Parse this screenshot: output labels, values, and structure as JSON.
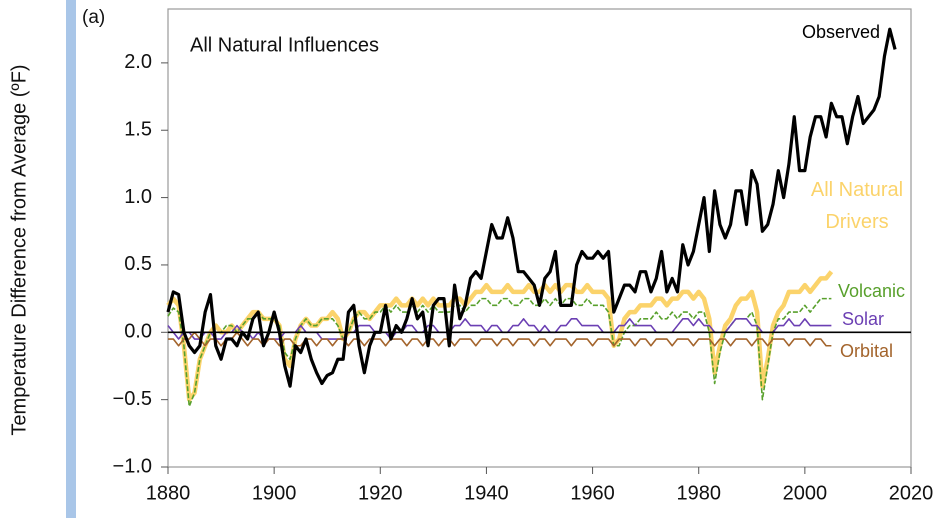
{
  "chart_data": {
    "type": "line",
    "panel_label": "(a)",
    "title": "All Natural Influences",
    "y_label": "Temperature Difference from Average (ºF)",
    "xlim": [
      1880,
      2020
    ],
    "xticks": [
      1880,
      1900,
      1920,
      1940,
      1960,
      1980,
      2000,
      2020
    ],
    "ylim": [
      -1.0,
      2.4
    ],
    "yticks": [
      {
        "value": -1.0,
        "label": "−1.0"
      },
      {
        "value": -0.5,
        "label": "−0.5"
      },
      {
        "value": 0,
        "label": "0.0"
      },
      0.5,
      {
        "value": 1.0,
        "label": "1.0"
      },
      1.5,
      {
        "value": 2.0,
        "label": "2.0"
      }
    ],
    "x": [
      1880,
      1881,
      1882,
      1883,
      1884,
      1885,
      1886,
      1887,
      1888,
      1889,
      1890,
      1891,
      1892,
      1893,
      1894,
      1895,
      1896,
      1897,
      1898,
      1899,
      1900,
      1901,
      1902,
      1903,
      1904,
      1905,
      1906,
      1907,
      1908,
      1909,
      1910,
      1911,
      1912,
      1913,
      1914,
      1915,
      1916,
      1917,
      1918,
      1919,
      1920,
      1921,
      1922,
      1923,
      1924,
      1925,
      1926,
      1927,
      1928,
      1929,
      1930,
      1931,
      1932,
      1933,
      1934,
      1935,
      1936,
      1937,
      1938,
      1939,
      1940,
      1941,
      1942,
      1943,
      1944,
      1945,
      1946,
      1947,
      1948,
      1949,
      1950,
      1951,
      1952,
      1953,
      1954,
      1955,
      1956,
      1957,
      1958,
      1959,
      1960,
      1961,
      1962,
      1963,
      1964,
      1965,
      1966,
      1967,
      1968,
      1969,
      1970,
      1971,
      1972,
      1973,
      1974,
      1975,
      1976,
      1977,
      1978,
      1979,
      1980,
      1981,
      1982,
      1983,
      1984,
      1985,
      1986,
      1987,
      1988,
      1989,
      1990,
      1991,
      1992,
      1993,
      1994,
      1995,
      1996,
      1997,
      1998,
      1999,
      2000,
      2001,
      2002,
      2003,
      2004,
      2005,
      2006,
      2007,
      2008,
      2009,
      2010,
      2011,
      2012,
      2013,
      2014,
      2015,
      2016,
      2017
    ],
    "series": [
      {
        "name": "All Natural Drivers",
        "color": "#fbd36b",
        "line_style": "solid",
        "values": [
          0.2,
          0.25,
          0.2,
          -0.1,
          -0.5,
          -0.45,
          -0.2,
          -0.1,
          0.0,
          0.05,
          0.0,
          0.0,
          0.05,
          0.0,
          0.05,
          0.1,
          0.15,
          0.15,
          0.1,
          0.1,
          0.1,
          0.05,
          -0.2,
          -0.25,
          -0.05,
          0.05,
          0.1,
          0.05,
          0.05,
          0.1,
          0.1,
          0.15,
          0.1,
          -0.05,
          0.0,
          0.1,
          0.15,
          0.15,
          0.1,
          0.15,
          0.2,
          0.2,
          0.2,
          0.25,
          0.2,
          0.2,
          0.25,
          0.2,
          0.25,
          0.2,
          0.25,
          0.2,
          0.2,
          0.2,
          0.25,
          0.25,
          0.2,
          0.25,
          0.3,
          0.3,
          0.35,
          0.3,
          0.3,
          0.3,
          0.35,
          0.3,
          0.3,
          0.3,
          0.35,
          0.3,
          0.3,
          0.35,
          0.3,
          0.35,
          0.3,
          0.35,
          0.35,
          0.3,
          0.3,
          0.35,
          0.3,
          0.3,
          0.3,
          0.25,
          -0.1,
          -0.05,
          0.1,
          0.15,
          0.15,
          0.2,
          0.2,
          0.2,
          0.25,
          0.25,
          0.2,
          0.25,
          0.25,
          0.3,
          0.3,
          0.25,
          0.3,
          0.25,
          0.1,
          -0.3,
          -0.1,
          0.05,
          0.1,
          0.2,
          0.25,
          0.25,
          0.3,
          0.15,
          -0.4,
          -0.2,
          0.05,
          0.15,
          0.2,
          0.3,
          0.3,
          0.3,
          0.35,
          0.3,
          0.35,
          0.4,
          0.4,
          0.45,
          null,
          null,
          null,
          null,
          null,
          null,
          null,
          null,
          null,
          null,
          null,
          null
        ]
      },
      {
        "name": "Volcanic",
        "color": "#58a02c",
        "line_style": "dashed",
        "values": [
          0.12,
          0.18,
          0.15,
          -0.1,
          -0.55,
          -0.45,
          -0.2,
          -0.1,
          0.0,
          0.0,
          0.0,
          0.05,
          0.05,
          0.0,
          0.05,
          0.1,
          0.1,
          0.15,
          0.1,
          0.1,
          0.1,
          0.05,
          -0.15,
          -0.2,
          -0.05,
          0.05,
          0.1,
          0.05,
          0.05,
          0.1,
          0.1,
          0.1,
          0.05,
          -0.05,
          0.0,
          0.1,
          0.15,
          0.1,
          0.1,
          0.15,
          0.15,
          0.2,
          0.15,
          0.2,
          0.15,
          0.15,
          0.2,
          0.15,
          0.2,
          0.15,
          0.2,
          0.15,
          0.15,
          0.15,
          0.2,
          0.2,
          0.15,
          0.2,
          0.2,
          0.25,
          0.25,
          0.2,
          0.2,
          0.25,
          0.25,
          0.2,
          0.2,
          0.25,
          0.25,
          0.2,
          0.2,
          0.25,
          0.2,
          0.25,
          0.2,
          0.25,
          0.25,
          0.2,
          0.2,
          0.25,
          0.2,
          0.2,
          0.2,
          0.15,
          -0.1,
          -0.1,
          0.0,
          0.05,
          0.05,
          0.1,
          0.1,
          0.1,
          0.15,
          0.1,
          0.1,
          0.15,
          0.1,
          0.15,
          0.15,
          0.1,
          0.15,
          0.15,
          0.0,
          -0.38,
          -0.15,
          0.0,
          0.05,
          0.1,
          0.1,
          0.1,
          0.15,
          0.05,
          -0.5,
          -0.25,
          0.0,
          0.1,
          0.1,
          0.15,
          0.15,
          0.15,
          0.2,
          0.15,
          0.2,
          0.25,
          0.25,
          0.25,
          null,
          null,
          null,
          null,
          null,
          null,
          null,
          null,
          null,
          null,
          null,
          null
        ]
      },
      {
        "name": "Solar",
        "color": "#6b3fb3",
        "line_style": "solid",
        "values": [
          0.05,
          0.0,
          -0.05,
          0.0,
          0.0,
          -0.05,
          -0.05,
          0.0,
          0.0,
          -0.05,
          -0.05,
          0.0,
          0.0,
          0.05,
          0.0,
          0.0,
          -0.05,
          0.0,
          -0.05,
          -0.05,
          -0.05,
          -0.05,
          0.0,
          0.0,
          0.0,
          0.05,
          0.0,
          0.0,
          0.0,
          -0.05,
          -0.05,
          -0.05,
          -0.05,
          -0.05,
          0.0,
          0.0,
          0.05,
          0.05,
          0.05,
          0.0,
          0.0,
          0.0,
          -0.05,
          0.0,
          0.0,
          0.05,
          0.05,
          0.0,
          0.0,
          0.05,
          0.05,
          0.0,
          0.0,
          0.0,
          0.05,
          0.05,
          0.1,
          0.05,
          0.05,
          0.05,
          0.0,
          0.05,
          0.05,
          0.0,
          0.0,
          0.05,
          0.05,
          0.1,
          0.05,
          0.05,
          0.0,
          0.05,
          0.0,
          0.0,
          0.05,
          0.05,
          0.1,
          0.1,
          0.05,
          0.05,
          0.05,
          0.05,
          0.0,
          0.0,
          0.0,
          0.05,
          0.05,
          0.1,
          0.05,
          0.05,
          0.05,
          0.05,
          0.0,
          0.0,
          0.0,
          0.0,
          0.05,
          0.1,
          0.1,
          0.05,
          0.1,
          0.05,
          0.05,
          0.0,
          0.0,
          0.0,
          0.05,
          0.1,
          0.1,
          0.1,
          0.05,
          0.05,
          0.0,
          0.0,
          0.0,
          0.05,
          0.05,
          0.1,
          0.05,
          0.05,
          0.1,
          0.05,
          0.05,
          0.05,
          0.05,
          0.05,
          null,
          null,
          null,
          null,
          null,
          null,
          null,
          null,
          null,
          null,
          null,
          null
        ]
      },
      {
        "name": "Orbital",
        "color": "#a3642c",
        "line_style": "solid",
        "values": [
          -0.05,
          -0.05,
          -0.1,
          -0.05,
          -0.05,
          0.0,
          -0.05,
          -0.1,
          -0.05,
          -0.05,
          -0.1,
          -0.05,
          -0.05,
          0.0,
          -0.05,
          -0.1,
          -0.05,
          -0.05,
          -0.1,
          -0.05,
          -0.05,
          -0.1,
          -0.05,
          -0.05,
          -0.1,
          -0.1,
          -0.05,
          -0.05,
          -0.1,
          -0.05,
          -0.05,
          -0.1,
          -0.05,
          -0.05,
          -0.1,
          -0.05,
          -0.05,
          -0.1,
          -0.05,
          -0.05,
          -0.05,
          -0.1,
          -0.05,
          -0.05,
          -0.05,
          -0.1,
          -0.05,
          -0.05,
          -0.1,
          -0.05,
          -0.05,
          -0.1,
          -0.05,
          -0.05,
          -0.1,
          -0.05,
          -0.05,
          -0.05,
          -0.1,
          -0.05,
          -0.05,
          -0.05,
          -0.1,
          -0.05,
          -0.05,
          -0.1,
          -0.05,
          -0.05,
          -0.05,
          -0.1,
          -0.05,
          -0.05,
          -0.1,
          -0.05,
          -0.05,
          -0.05,
          -0.1,
          -0.05,
          -0.05,
          -0.05,
          -0.1,
          -0.05,
          -0.05,
          -0.05,
          -0.1,
          -0.05,
          -0.05,
          -0.05,
          -0.1,
          -0.05,
          -0.05,
          -0.1,
          -0.05,
          -0.05,
          -0.05,
          -0.1,
          -0.05,
          -0.05,
          -0.05,
          -0.1,
          -0.05,
          -0.05,
          -0.05,
          -0.1,
          -0.05,
          -0.05,
          -0.1,
          -0.05,
          -0.05,
          -0.05,
          -0.1,
          -0.05,
          -0.05,
          -0.1,
          -0.05,
          -0.05,
          -0.05,
          -0.1,
          -0.05,
          -0.05,
          -0.05,
          -0.1,
          -0.05,
          -0.05,
          -0.1,
          -0.1,
          null,
          null,
          null,
          null,
          null,
          null,
          null,
          null,
          null,
          null,
          null,
          null
        ]
      },
      {
        "name": "Observed",
        "color": "#000000",
        "line_style": "solid",
        "values": [
          0.15,
          0.3,
          0.28,
          0.0,
          -0.1,
          -0.15,
          -0.1,
          0.15,
          0.28,
          -0.1,
          -0.2,
          -0.05,
          -0.05,
          -0.1,
          0.0,
          -0.05,
          0.1,
          0.15,
          -0.1,
          0.0,
          0.15,
          0.0,
          -0.25,
          -0.4,
          -0.1,
          -0.15,
          -0.05,
          -0.2,
          -0.3,
          -0.38,
          -0.32,
          -0.3,
          -0.2,
          -0.2,
          0.15,
          0.2,
          -0.1,
          -0.3,
          -0.1,
          0.0,
          0.0,
          0.2,
          -0.05,
          0.05,
          0.0,
          0.1,
          0.25,
          0.1,
          0.15,
          -0.1,
          0.2,
          0.25,
          0.25,
          -0.1,
          0.35,
          0.1,
          0.2,
          0.4,
          0.45,
          0.4,
          0.6,
          0.8,
          0.7,
          0.7,
          0.85,
          0.7,
          0.45,
          0.45,
          0.4,
          0.35,
          0.2,
          0.4,
          0.45,
          0.6,
          0.2,
          0.2,
          0.2,
          0.5,
          0.6,
          0.55,
          0.55,
          0.6,
          0.55,
          0.6,
          0.15,
          0.25,
          0.35,
          0.35,
          0.3,
          0.45,
          0.45,
          0.3,
          0.4,
          0.6,
          0.3,
          0.4,
          0.3,
          0.65,
          0.5,
          0.6,
          0.8,
          1.0,
          0.6,
          1.05,
          0.8,
          0.7,
          0.8,
          1.05,
          1.05,
          0.8,
          1.2,
          1.1,
          0.75,
          0.8,
          0.95,
          1.2,
          1.0,
          1.25,
          1.6,
          1.2,
          1.2,
          1.45,
          1.6,
          1.6,
          1.45,
          1.7,
          1.6,
          1.6,
          1.4,
          1.6,
          1.75,
          1.55,
          1.6,
          1.65,
          1.75,
          2.05,
          2.25,
          2.1
        ]
      }
    ]
  }
}
